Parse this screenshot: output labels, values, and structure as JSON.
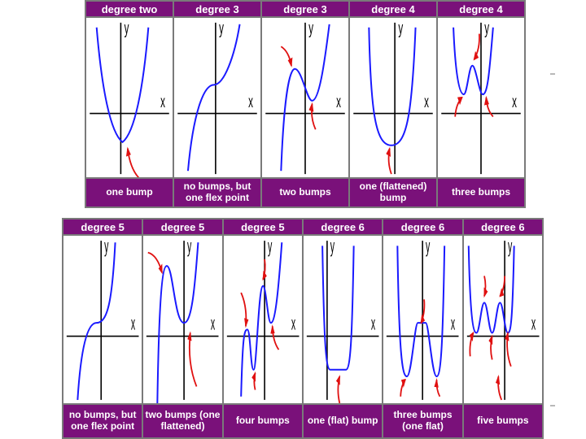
{
  "axis_labels": {
    "x": "x",
    "y": "y"
  },
  "top_row": [
    {
      "header": "degree two",
      "caption": "one bump"
    },
    {
      "header": "degree 3",
      "caption": "no bumps, but one flex point"
    },
    {
      "header": "degree 3",
      "caption": "two bumps"
    },
    {
      "header": "degree 4",
      "caption": "one (flattened) bump"
    },
    {
      "header": "degree 4",
      "caption": "three bumps"
    }
  ],
  "bottom_row": [
    {
      "header": "degree 5",
      "caption": "no bumps, but one flex point"
    },
    {
      "header": "degree 5",
      "caption": "two bumps (one flattened)"
    },
    {
      "header": "degree 5",
      "caption": "four bumps"
    },
    {
      "header": "degree 6",
      "caption": "one (flat) bump"
    },
    {
      "header": "degree 6",
      "caption": "three bumps (one flat)"
    },
    {
      "header": "degree 6",
      "caption": "five bumps"
    }
  ],
  "colors": {
    "header_bg": "#7a117a",
    "curve": "#1a1aff",
    "arrow": "#e01010",
    "axis": "#000000"
  }
}
